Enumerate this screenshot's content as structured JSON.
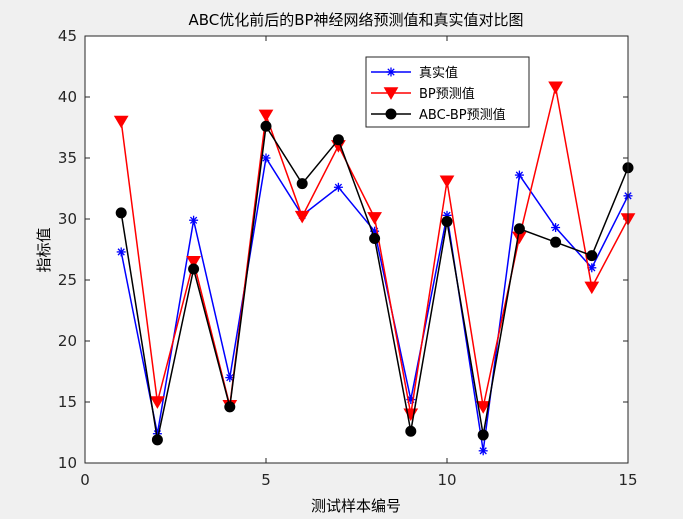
{
  "chart_data": {
    "type": "line",
    "title": "ABC优化前后的BP神经网络预测值和真实值对比图",
    "xlabel": "测试样本编号",
    "ylabel": "指标值",
    "xlim": [
      0,
      15
    ],
    "ylim": [
      10,
      45
    ],
    "xticks": [
      0,
      5,
      10,
      15
    ],
    "yticks": [
      10,
      15,
      20,
      25,
      30,
      35,
      40,
      45
    ],
    "grid": false,
    "legend_position": "top-right",
    "x": [
      1,
      2,
      3,
      4,
      5,
      6,
      7,
      8,
      9,
      10,
      11,
      12,
      13,
      14,
      15
    ],
    "series": [
      {
        "name": "真实值",
        "color": "#0000ff",
        "marker": "asterisk",
        "values": [
          27.3,
          12.4,
          29.9,
          17.0,
          35.0,
          30.3,
          32.6,
          29.0,
          15.2,
          30.3,
          11.0,
          33.6,
          29.3,
          26.0,
          31.9
        ]
      },
      {
        "name": "BP预测值",
        "color": "#ff0000",
        "marker": "triangle-down",
        "values": [
          38.0,
          15.0,
          26.5,
          14.7,
          38.5,
          30.2,
          36.0,
          30.1,
          14.0,
          33.1,
          14.6,
          28.5,
          40.8,
          24.4,
          30.0
        ]
      },
      {
        "name": "ABC-BP预测值",
        "color": "#000000",
        "marker": "circle",
        "values": [
          30.5,
          11.9,
          25.9,
          14.6,
          37.6,
          32.9,
          36.5,
          28.4,
          12.6,
          29.8,
          12.3,
          29.2,
          28.1,
          27.0,
          34.2
        ]
      }
    ]
  }
}
